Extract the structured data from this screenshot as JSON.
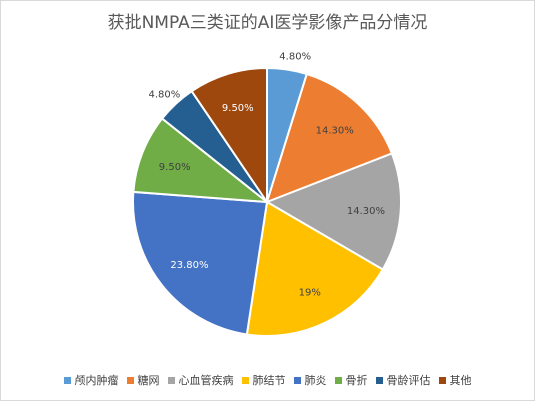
{
  "chart_data": {
    "type": "pie",
    "title": "获批NMPA三类证的AI医学影像产品分情况",
    "categories": [
      "颅内肿瘤",
      "糖网",
      "心血管疾病",
      "肺结节",
      "肺炎",
      "骨折",
      "骨龄评估",
      "其他"
    ],
    "values": [
      4.8,
      14.3,
      14.3,
      19,
      23.8,
      9.5,
      4.8,
      9.5
    ],
    "data_labels": [
      "4.80%",
      "14.30%",
      "14.30%",
      "19%",
      "23.80%",
      "9.50%",
      "4.80%",
      "9.50%"
    ],
    "colors": [
      "#5b9bd5",
      "#ed7d31",
      "#a5a5a5",
      "#ffc000",
      "#4472c4",
      "#70ad47",
      "#255e91",
      "#9e480e"
    ],
    "legend": "bottom"
  }
}
